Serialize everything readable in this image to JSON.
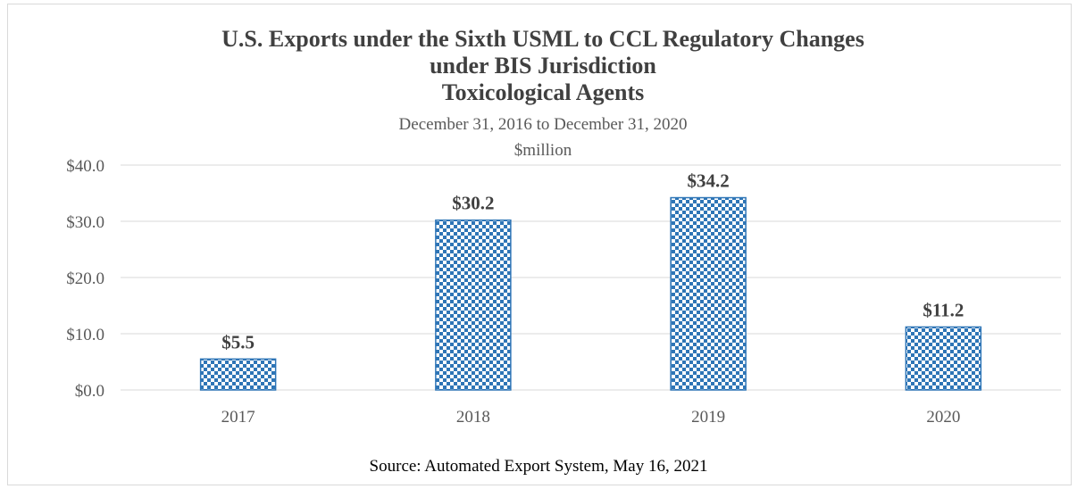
{
  "chart_data": {
    "type": "bar",
    "title_lines": [
      "U.S. Exports under the Sixth USML to CCL Regulatory Changes",
      "under BIS Jurisdiction",
      "Toxicological Agents"
    ],
    "subtitle_lines": [
      "December 31, 2016 to December 31, 2020",
      "$million"
    ],
    "categories": [
      "2017",
      "2018",
      "2019",
      "2020"
    ],
    "values": [
      5.5,
      30.2,
      34.2,
      11.2
    ],
    "data_labels": [
      "$5.5",
      "$30.2",
      "$34.2",
      "$11.2"
    ],
    "ylim": [
      0,
      40
    ],
    "yticks": [
      0,
      10,
      20,
      30,
      40
    ],
    "ytick_labels": [
      "$0.0",
      "$10.0",
      "$20.0",
      "$30.0",
      "$40.0"
    ],
    "grid": true,
    "colors": {
      "bar_fill": "#ffffff",
      "bar_pattern": "#2e75b6",
      "grid": "#d9d9d9"
    },
    "source": "Source: Automated Export System, May 16, 2021"
  }
}
